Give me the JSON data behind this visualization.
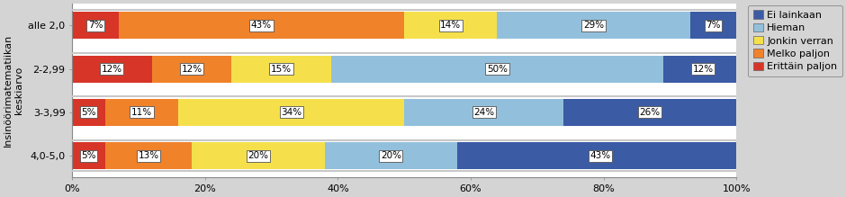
{
  "categories": [
    "alle 2,0",
    "2-2,99",
    "3-3,99",
    "4,0-5,0"
  ],
  "series": [
    {
      "name": "Erittäin paljon",
      "color": "#D73527",
      "values": [
        7,
        12,
        5,
        5
      ]
    },
    {
      "name": "Melko paljon",
      "color": "#F0822A",
      "values": [
        43,
        12,
        11,
        13
      ]
    },
    {
      "name": "Jonkin verran",
      "color": "#F5E04B",
      "values": [
        14,
        15,
        34,
        20
      ]
    },
    {
      "name": "Hieman",
      "color": "#92C0DC",
      "values": [
        29,
        50,
        24,
        20
      ]
    },
    {
      "name": "Ei lainkaan",
      "color": "#3B5BA5",
      "values": [
        7,
        12,
        26,
        43
      ]
    }
  ],
  "ylabel": "Insinöörimatematiikan\nkeskiarvo",
  "xlabel_ticks": [
    "0%",
    "20%",
    "40%",
    "60%",
    "80%",
    "100%"
  ],
  "xlabel_vals": [
    0,
    20,
    40,
    60,
    80,
    100
  ],
  "legend_order": [
    "Ei lainkaan",
    "Hieman",
    "Jonkin verran",
    "Melko paljon",
    "Erittäin paljon"
  ],
  "legend_colors": [
    "#3B5BA5",
    "#92C0DC",
    "#F5E04B",
    "#F0822A",
    "#D73527"
  ],
  "outer_bg": "#D4D4D4",
  "plot_bg": "#FFFFFF",
  "bar_height": 0.62,
  "label_fontsize": 7.5,
  "ylabel_fontsize": 8,
  "tick_fontsize": 8,
  "legend_fontsize": 8,
  "separator_color": "#C8C8C8"
}
